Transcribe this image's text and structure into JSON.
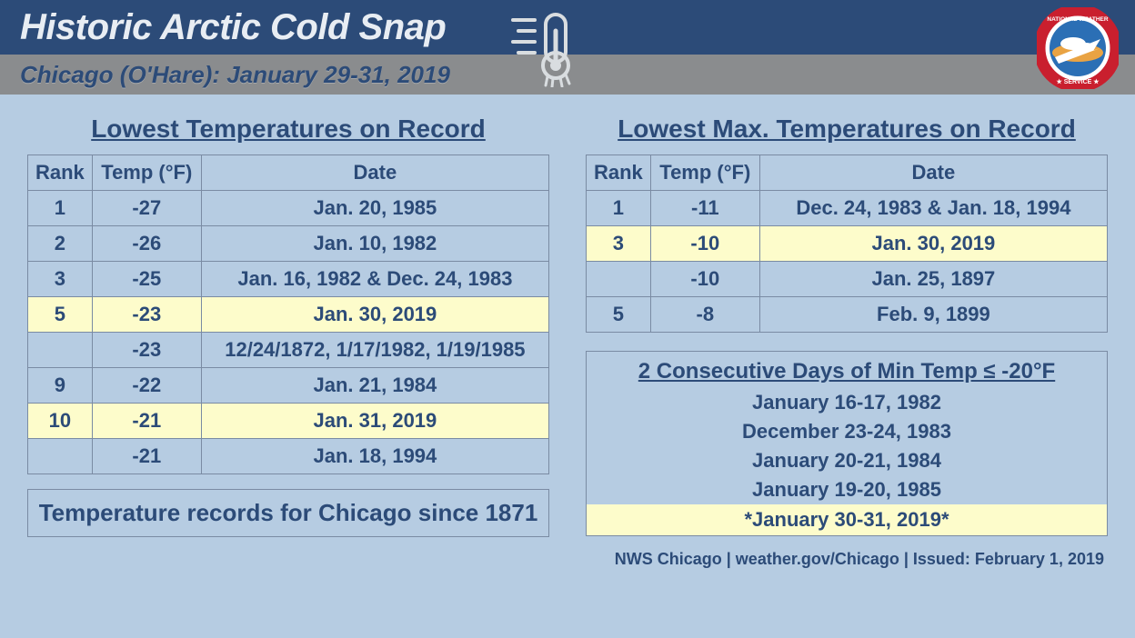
{
  "header": {
    "title": "Historic Arctic Cold Snap",
    "subtitle": "Chicago (O'Hare): January 29-31, 2019"
  },
  "colors": {
    "header_blue": "#2c4b78",
    "header_gray": "#8a8c8e",
    "page_bg": "#b6cce2",
    "highlight": "#fdfccb",
    "text": "#2c4b78",
    "border": "#7a8ba3"
  },
  "left": {
    "title": "Lowest Temperatures on Record",
    "columns": [
      "Rank",
      "Temp (°F)",
      "Date"
    ],
    "rows": [
      {
        "rank": "1",
        "temp": "-27",
        "date": "Jan. 20, 1985",
        "hl": false
      },
      {
        "rank": "2",
        "temp": "-26",
        "date": "Jan. 10, 1982",
        "hl": false
      },
      {
        "rank": "3",
        "temp": "-25",
        "date": "Jan. 16, 1982 & Dec. 24, 1983",
        "hl": false
      },
      {
        "rank": "5",
        "temp": "-23",
        "date": "Jan. 30, 2019",
        "hl": true
      },
      {
        "rank": "",
        "temp": "-23",
        "date": "12/24/1872, 1/17/1982, 1/19/1985",
        "hl": false
      },
      {
        "rank": "9",
        "temp": "-22",
        "date": "Jan. 21, 1984",
        "hl": false
      },
      {
        "rank": "10",
        "temp": "-21",
        "date": "Jan. 31, 2019",
        "hl": true
      },
      {
        "rank": "",
        "temp": "-21",
        "date": "Jan. 18, 1994",
        "hl": false
      }
    ],
    "caption": "Temperature records for Chicago since 1871"
  },
  "right_top": {
    "title": "Lowest Max. Temperatures on Record",
    "columns": [
      "Rank",
      "Temp (°F)",
      "Date"
    ],
    "rows": [
      {
        "rank": "1",
        "temp": "-11",
        "date": "Dec. 24, 1983 & Jan. 18, 1994",
        "hl": false
      },
      {
        "rank": "3",
        "temp": "-10",
        "date": "Jan. 30, 2019",
        "hl": true
      },
      {
        "rank": "",
        "temp": "-10",
        "date": "Jan. 25, 1897",
        "hl": false
      },
      {
        "rank": "5",
        "temp": "-8",
        "date": "Feb. 9, 1899",
        "hl": false
      }
    ]
  },
  "right_bottom": {
    "title": "2 Consecutive Days of Min Temp ≤ -20°F",
    "items": [
      "January 16-17, 1982",
      "December 23-24, 1983",
      "January 20-21, 1984",
      "January 19-20, 1985"
    ],
    "highlight_item": "*January 30-31, 2019*"
  },
  "footer": "NWS Chicago  |  weather.gov/Chicago  |  Issued:  February 1, 2019"
}
